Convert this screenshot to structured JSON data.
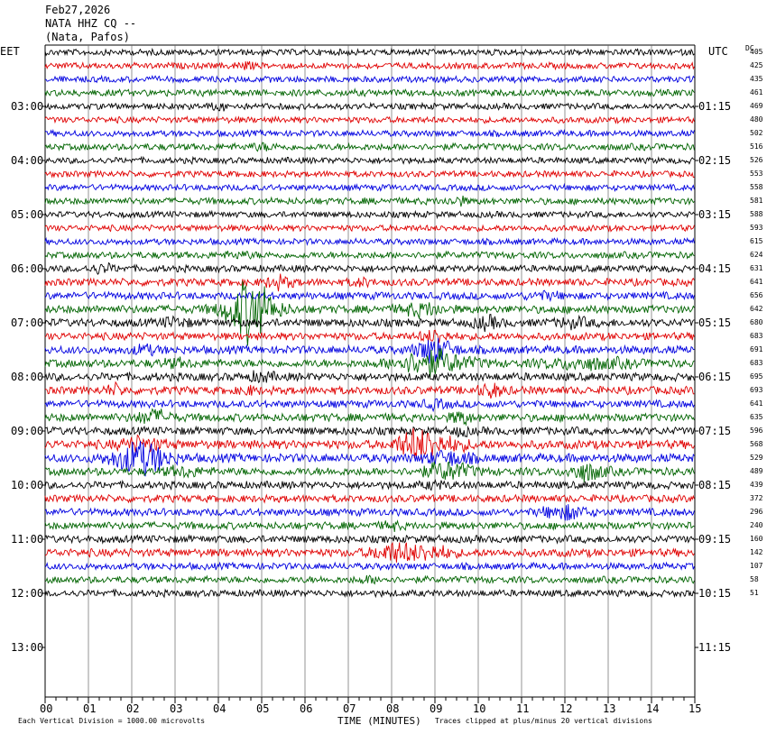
{
  "header": {
    "date": "Feb27,2026",
    "station": "NATA HHZ CQ --",
    "location": "(Nata, Pafos)"
  },
  "left_tz": "EET",
  "right_tz": "UTC",
  "dc_label": "DC",
  "footer": {
    "left": "Each Vertical Division = 1000.00 microvolts",
    "right": "Traces clipped at plus/minus 20 vertical divisions"
  },
  "colors": {
    "trace_cycle": [
      "#000000",
      "#e00000",
      "#0000e0",
      "#006400"
    ],
    "grid": "#000000"
  },
  "chart_data": {
    "type": "line",
    "title": "NATA HHZ CQ --",
    "xlabel": "TIME (MINUTES)",
    "ylabel": "",
    "x_ticks": [
      "00",
      "01",
      "02",
      "03",
      "04",
      "05",
      "06",
      "07",
      "08",
      "09",
      "10",
      "11",
      "12",
      "13",
      "14",
      "15"
    ],
    "xlim": [
      0,
      15
    ],
    "hour_labels_left": [
      "03:00",
      "04:00",
      "05:00",
      "06:00",
      "07:00",
      "08:00",
      "09:00",
      "10:00",
      "11:00",
      "12:00",
      "13:00"
    ],
    "hour_labels_right": [
      "01:15",
      "02:15",
      "03:15",
      "04:15",
      "05:15",
      "06:15",
      "07:15",
      "08:15",
      "09:15",
      "10:15",
      "11:15"
    ],
    "series": [
      {
        "dc": "405",
        "amp": 1.0,
        "events": []
      },
      {
        "dc": "425",
        "amp": 1.0,
        "events": [
          [
            4.6,
            1.8,
            0.2
          ]
        ]
      },
      {
        "dc": "435",
        "amp": 1.0,
        "events": []
      },
      {
        "dc": "461",
        "amp": 1.1,
        "events": []
      },
      {
        "dc": "469",
        "amp": 1.0,
        "events": [
          [
            4.0,
            1.8,
            0.2
          ]
        ]
      },
      {
        "dc": "480",
        "amp": 1.0,
        "events": []
      },
      {
        "dc": "502",
        "amp": 1.0,
        "events": []
      },
      {
        "dc": "516",
        "amp": 1.1,
        "events": [
          [
            5.0,
            1.6,
            0.3
          ]
        ]
      },
      {
        "dc": "526",
        "amp": 1.0,
        "events": []
      },
      {
        "dc": "553",
        "amp": 1.0,
        "events": []
      },
      {
        "dc": "558",
        "amp": 1.0,
        "events": []
      },
      {
        "dc": "581",
        "amp": 1.1,
        "events": [
          [
            9.5,
            2.0,
            0.2
          ]
        ]
      },
      {
        "dc": "588",
        "amp": 1.0,
        "events": []
      },
      {
        "dc": "593",
        "amp": 1.0,
        "events": []
      },
      {
        "dc": "615",
        "amp": 1.0,
        "events": []
      },
      {
        "dc": "624",
        "amp": 1.1,
        "events": [
          [
            4.5,
            1.6,
            0.3
          ]
        ]
      },
      {
        "dc": "631",
        "amp": 1.1,
        "events": [
          [
            1.3,
            2.0,
            0.3
          ]
        ]
      },
      {
        "dc": "641",
        "amp": 1.2,
        "events": [
          [
            5.4,
            2.4,
            0.3
          ],
          [
            7.3,
            1.8,
            0.2
          ]
        ]
      },
      {
        "dc": "656",
        "amp": 1.2,
        "events": [
          [
            11.5,
            1.6,
            0.4
          ]
        ]
      },
      {
        "dc": "642",
        "amp": 1.3,
        "events": [
          [
            4.5,
            3.8,
            0.5
          ],
          [
            5.0,
            3.2,
            0.5
          ],
          [
            8.7,
            2.2,
            0.5
          ]
        ]
      },
      {
        "dc": "680",
        "amp": 1.3,
        "events": [
          [
            3.0,
            1.8,
            0.3
          ],
          [
            10.2,
            2.2,
            0.3
          ],
          [
            12.2,
            1.8,
            0.4
          ]
        ]
      },
      {
        "dc": "683",
        "amp": 1.2,
        "events": [
          [
            9.0,
            2.4,
            0.3
          ]
        ]
      },
      {
        "dc": "691",
        "amp": 1.3,
        "events": [
          [
            9.0,
            3.8,
            0.4
          ],
          [
            2.3,
            1.8,
            0.3
          ]
        ]
      },
      {
        "dc": "683",
        "amp": 1.3,
        "events": [
          [
            8.9,
            3.8,
            0.8
          ],
          [
            12.5,
            2.0,
            1.0
          ],
          [
            3.0,
            1.6,
            0.4
          ]
        ]
      },
      {
        "dc": "695",
        "amp": 1.3,
        "events": [
          [
            5.0,
            1.8,
            0.3
          ]
        ]
      },
      {
        "dc": "693",
        "amp": 1.3,
        "events": [
          [
            1.6,
            2.0,
            0.2
          ],
          [
            10.3,
            2.2,
            0.3
          ],
          [
            4.7,
            1.6,
            0.2
          ]
        ]
      },
      {
        "dc": "641",
        "amp": 1.2,
        "events": [
          [
            9.0,
            1.8,
            0.3
          ]
        ]
      },
      {
        "dc": "635",
        "amp": 1.3,
        "events": [
          [
            2.5,
            2.4,
            0.4
          ],
          [
            9.6,
            2.4,
            0.2
          ]
        ]
      },
      {
        "dc": "596",
        "amp": 1.3,
        "events": [
          [
            9.6,
            1.8,
            0.2
          ]
        ]
      },
      {
        "dc": "568",
        "amp": 1.4,
        "events": [
          [
            8.5,
            3.2,
            0.4
          ],
          [
            9.2,
            2.2,
            0.6
          ],
          [
            2.2,
            2.2,
            0.5
          ]
        ]
      },
      {
        "dc": "529",
        "amp": 1.4,
        "events": [
          [
            2.2,
            4.5,
            0.6
          ],
          [
            9.3,
            2.2,
            0.5
          ]
        ]
      },
      {
        "dc": "489",
        "amp": 1.3,
        "events": [
          [
            9.3,
            3.0,
            0.5
          ],
          [
            12.5,
            2.8,
            0.4
          ],
          [
            3.2,
            1.8,
            0.4
          ]
        ]
      },
      {
        "dc": "439",
        "amp": 1.2,
        "events": [
          [
            9.0,
            1.6,
            0.3
          ]
        ]
      },
      {
        "dc": "372",
        "amp": 1.2,
        "events": []
      },
      {
        "dc": "296",
        "amp": 1.2,
        "events": [
          [
            12.0,
            2.6,
            0.5
          ]
        ]
      },
      {
        "dc": "240",
        "amp": 1.2,
        "events": [
          [
            8.0,
            1.8,
            0.2
          ]
        ]
      },
      {
        "dc": "160",
        "amp": 1.2,
        "events": []
      },
      {
        "dc": "142",
        "amp": 1.3,
        "events": [
          [
            8.1,
            3.0,
            0.5
          ],
          [
            9.0,
            2.2,
            0.4
          ]
        ]
      },
      {
        "dc": "107",
        "amp": 1.1,
        "events": []
      },
      {
        "dc": "58",
        "amp": 1.1,
        "events": [
          [
            7.5,
            1.6,
            0.3
          ]
        ]
      },
      {
        "dc": "51",
        "amp": 1.1,
        "events": []
      }
    ]
  }
}
